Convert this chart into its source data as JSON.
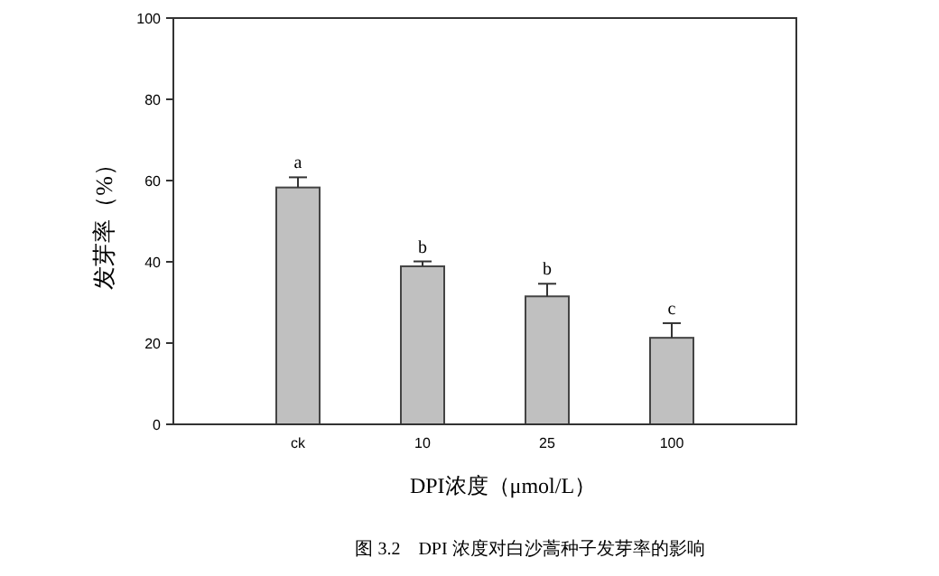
{
  "chart_data": {
    "type": "bar",
    "xlabel": "DPI浓度（μmol/L）",
    "ylabel": "发芽率（%）",
    "categories": [
      "ck",
      "10",
      "25",
      "100"
    ],
    "values": [
      58.3,
      38.9,
      31.5,
      21.3
    ],
    "errors": [
      [
        58.3,
        60.8
      ],
      [
        38.9,
        40.1
      ],
      [
        31.5,
        34.6
      ],
      [
        21.3,
        24.9
      ]
    ],
    "color": "#c0c0c0",
    "ylim": [
      0,
      100
    ],
    "yticks": [
      0,
      20,
      40,
      60,
      80,
      100
    ],
    "grid": false,
    "annotations": [
      {
        "text": "a",
        "x": "ck",
        "y": 60.8
      },
      {
        "text": "b",
        "x": "10",
        "y": 40.1
      },
      {
        "text": "b",
        "x": "25",
        "y": 34.6
      },
      {
        "text": "c",
        "x": "100",
        "y": 24.9
      },
      "图 3.2　DPI 浓度对白沙蒿种子发芽率的影响"
    ]
  }
}
